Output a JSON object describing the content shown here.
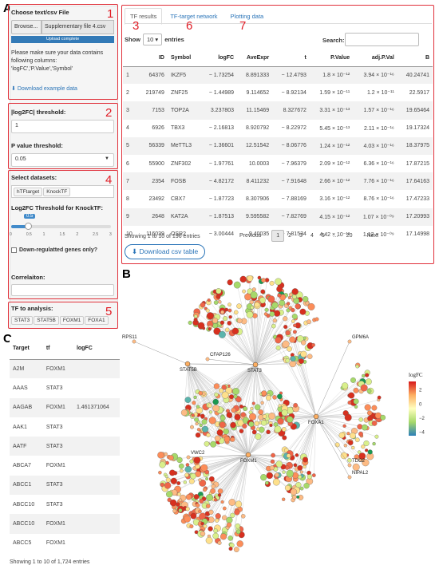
{
  "panel_letters": {
    "a": "A",
    "b": "B",
    "c": "C"
  },
  "callouts": [
    "1",
    "2",
    "3",
    "4",
    "5",
    "6",
    "7"
  ],
  "upload": {
    "title": "Choose text/csv File",
    "browse_label": "Browse...",
    "file_name": "Supplementary file 4.csv",
    "status": "Upload complete",
    "instructions": "Please make sure your data contains following columns: 'logFC','P.Value','Symbol'",
    "download_label": "Download example data"
  },
  "thresholds": {
    "logfc_label": "|log2FC| threshold:",
    "logfc_value": "1",
    "p_label": "P value threshold:",
    "p_value": "0.05"
  },
  "datasets": {
    "label": "Select datasets:",
    "tags": [
      "hTFtarget",
      "KnockTF"
    ],
    "slider_label": "Log2FC Threshold for KnockTF:",
    "slider_value": "0.5",
    "slider_fraction": 0.167,
    "slider_ticks": [
      "0",
      "0.5",
      "1",
      "1.5",
      "2",
      "2.5",
      "3"
    ],
    "down_label": "Down-regulatted genes only?",
    "corr_label": "Correlaiton:"
  },
  "tf_analysis": {
    "label": "TF to analysis:",
    "tags": [
      "STAT3",
      "STAT5B",
      "FOXM1",
      "FOXA1"
    ]
  },
  "results": {
    "tabs": [
      "TF results",
      "TF-target network",
      "Plotting data"
    ],
    "show_label": "Show",
    "show_value": "10",
    "entries_label": "entries",
    "search_label": "Search:",
    "columns": [
      "",
      "ID",
      "Symbol",
      "logFC",
      "AveExpr",
      "t",
      "P.Value",
      "adj.P.Val",
      "B"
    ],
    "rows": [
      [
        "1",
        "64376",
        "IKZF5",
        "− 1.73254",
        "8.891333",
        "− 12.4793",
        "1.8 × 10⁻¹²",
        "3.94 × 10⁻¹⁶",
        "40.24741"
      ],
      [
        "2",
        "219749",
        "ZNF25",
        "− 1.44989",
        "9.114652",
        "− 8.92134",
        "1.59 × 10⁻¹¹",
        "1.2 × 10⁻¹¹",
        "22.5917"
      ],
      [
        "3",
        "7153",
        "TOP2A",
        "3.237803",
        "11.15469",
        "8.327672",
        "3.31 × 10⁻¹³",
        "1.57 × 10⁻¹⁶",
        "19.65464"
      ],
      [
        "4",
        "6926",
        "TBX3",
        "− 2.16813",
        "8.920792",
        "− 8.22972",
        "5.45 × 10⁻¹³",
        "2.11 × 10⁻¹⁶",
        "19.17324"
      ],
      [
        "5",
        "56339",
        "MeTTL3",
        "− 1.36601",
        "12.51542",
        "− 8.06776",
        "1.24 × 10⁻¹²",
        "4.03 × 10⁻¹⁶",
        "18.37975"
      ],
      [
        "6",
        "55900",
        "ZNF302",
        "− 1.97761",
        "10.0003",
        "− 7.96379",
        "2.09 × 10⁻¹²",
        "6.36 × 10⁻¹⁶",
        "17.87215"
      ],
      [
        "7",
        "2354",
        "FOSB",
        "− 4.82172",
        "8.411232",
        "− 7.91648",
        "2.66 × 10⁻¹²",
        "7.76 × 10⁻¹⁶",
        "17.64163"
      ],
      [
        "8",
        "23492",
        "CBX7",
        "− 1.87723",
        "8.307906",
        "− 7.88169",
        "3.16 × 10⁻¹²",
        "8.76 × 10⁻¹⁶",
        "17.47233"
      ],
      [
        "9",
        "2648",
        "KAT2A",
        "− 1.87513",
        "9.595582",
        "− 7.82769",
        "4.15 × 10⁻¹²",
        "1.07 × 10⁻⁰⁹",
        "17.20993"
      ],
      [
        "10",
        "116039",
        "OSR2",
        "− 3.00444",
        "9.40035",
        "− 7.81534",
        "4.42 × 10⁻¹²",
        "1.12 × 10⁻⁰⁹",
        "17.14998"
      ]
    ],
    "footer": "Showing 1 to 10 of 196 entries",
    "pagination": [
      "Previous",
      "1",
      "2",
      "3",
      "4",
      "5",
      "…",
      "20",
      "Next"
    ],
    "download_label": "Download csv table"
  },
  "plotting": {
    "columns": [
      "Target",
      "tf",
      "logFC"
    ],
    "rows": [
      [
        "A2M",
        "FOXM1",
        ""
      ],
      [
        "AAAS",
        "STAT3",
        ""
      ],
      [
        "AAGAB",
        "FOXM1",
        "1.461371064"
      ],
      [
        "AAK1",
        "STAT3",
        ""
      ],
      [
        "AATF",
        "STAT3",
        ""
      ],
      [
        "ABCA7",
        "FOXM1",
        ""
      ],
      [
        "ABCC1",
        "STAT3",
        ""
      ],
      [
        "ABCC10",
        "STAT3",
        ""
      ],
      [
        "ABCC10",
        "FOXM1",
        ""
      ],
      [
        "ABCC5",
        "FOXM1",
        ""
      ]
    ],
    "footer": "Showing 1 to 10 of 1,724 entries"
  },
  "network": {
    "hubs": [
      "STAT3",
      "FOXA1",
      "FOXM1",
      "STAT5B"
    ],
    "genes": [
      "RPS11",
      "CFAP126",
      "GPM6A",
      "VWC2",
      "TDO2",
      "NIPAL2"
    ],
    "legend_title": "logFC",
    "legend_ticks": [
      "2",
      "0",
      "−2",
      "−4"
    ],
    "legend_range": [
      -4.5,
      3.2
    ]
  }
}
